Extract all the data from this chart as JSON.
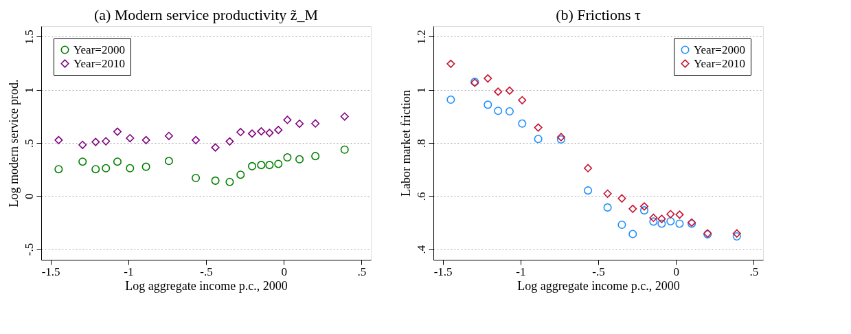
{
  "chart_data": [
    {
      "type": "scatter",
      "title": "(a) Modern service productivity z̃_M",
      "xlabel": "Log aggregate income p.c., 2000",
      "ylabel": "Log modern service prod.",
      "x": [
        -1.448,
        -1.294,
        -1.21,
        -1.144,
        -1.07,
        -0.989,
        -0.886,
        -0.739,
        -0.566,
        -0.44,
        -0.348,
        -0.278,
        -0.204,
        -0.145,
        -0.092,
        -0.035,
        0.023,
        0.101,
        0.203,
        0.391
      ],
      "series": [
        {
          "name": "Year=2000",
          "color": "#008000",
          "marker": "circle",
          "values": [
            0.253,
            0.324,
            0.253,
            0.262,
            0.324,
            0.262,
            0.276,
            0.33,
            0.17,
            0.145,
            0.133,
            0.201,
            0.281,
            0.292,
            0.292,
            0.303,
            0.364,
            0.346,
            0.376,
            0.437
          ]
        },
        {
          "name": "Year=2010",
          "color": "#800080",
          "marker": "diamond",
          "values": [
            0.527,
            0.482,
            0.509,
            0.516,
            0.606,
            0.545,
            0.527,
            0.566,
            0.527,
            0.457,
            0.514,
            0.602,
            0.588,
            0.609,
            0.595,
            0.622,
            0.717,
            0.681,
            0.683,
            0.749
          ]
        }
      ],
      "xlim": [
        -1.56,
        0.56
      ],
      "xticks": [
        {
          "value": -1.5,
          "label": "-1.5"
        },
        {
          "value": -1,
          "label": "-1"
        },
        {
          "value": -0.5,
          "label": "-.5"
        },
        {
          "value": 0,
          "label": "0"
        },
        {
          "value": 0.5,
          "label": ".5"
        }
      ],
      "ylim": [
        -0.6,
        1.6
      ],
      "yticks": [
        {
          "value": -0.5,
          "label": "-.5"
        },
        {
          "value": 0,
          "label": "0"
        },
        {
          "value": 0.5,
          "label": ".5"
        },
        {
          "value": 1,
          "label": "1"
        },
        {
          "value": 1.5,
          "label": "1.5"
        }
      ],
      "grid": "y",
      "legend": "top left"
    },
    {
      "type": "scatter",
      "title": "(b) Frictions τ",
      "xlabel": "Log aggregate income p.c., 2000",
      "ylabel": "Labor market friction",
      "x": [
        -1.448,
        -1.294,
        -1.21,
        -1.144,
        -1.07,
        -0.989,
        -0.886,
        -0.739,
        -0.566,
        -0.44,
        -0.348,
        -0.278,
        -0.204,
        -0.145,
        -0.092,
        -0.035,
        0.023,
        0.101,
        0.203,
        0.391
      ],
      "series": [
        {
          "name": "Year=2000",
          "color": "#1e90ff",
          "marker": "circle",
          "values": [
            0.963,
            1.03,
            0.944,
            0.921,
            0.919,
            0.873,
            0.815,
            0.813,
            0.621,
            0.557,
            0.492,
            0.457,
            0.546,
            0.504,
            0.496,
            0.505,
            0.496,
            0.496,
            0.456,
            0.448
          ]
        },
        {
          "name": "Year=2010",
          "color": "#c8102e",
          "marker": "diamond",
          "values": [
            1.098,
            1.027,
            1.043,
            0.993,
            0.997,
            0.961,
            0.858,
            0.822,
            0.705,
            0.609,
            0.591,
            0.552,
            0.561,
            0.518,
            0.514,
            0.532,
            0.53,
            0.5,
            0.459,
            0.459
          ]
        }
      ],
      "xlim": [
        -1.56,
        0.56
      ],
      "xticks": [
        {
          "value": -1.5,
          "label": "-1.5"
        },
        {
          "value": -1,
          "label": "-1"
        },
        {
          "value": -0.5,
          "label": "-.5"
        },
        {
          "value": 0,
          "label": "0"
        },
        {
          "value": 0.5,
          "label": ".5"
        }
      ],
      "ylim": [
        0.36,
        1.24
      ],
      "yticks": [
        {
          "value": 0.4,
          "label": ".4"
        },
        {
          "value": 0.6,
          "label": ".6"
        },
        {
          "value": 0.8,
          "label": ".8"
        },
        {
          "value": 1,
          "label": "1"
        },
        {
          "value": 1.2,
          "label": "1.2"
        }
      ],
      "grid": "y",
      "legend": "top right"
    }
  ]
}
